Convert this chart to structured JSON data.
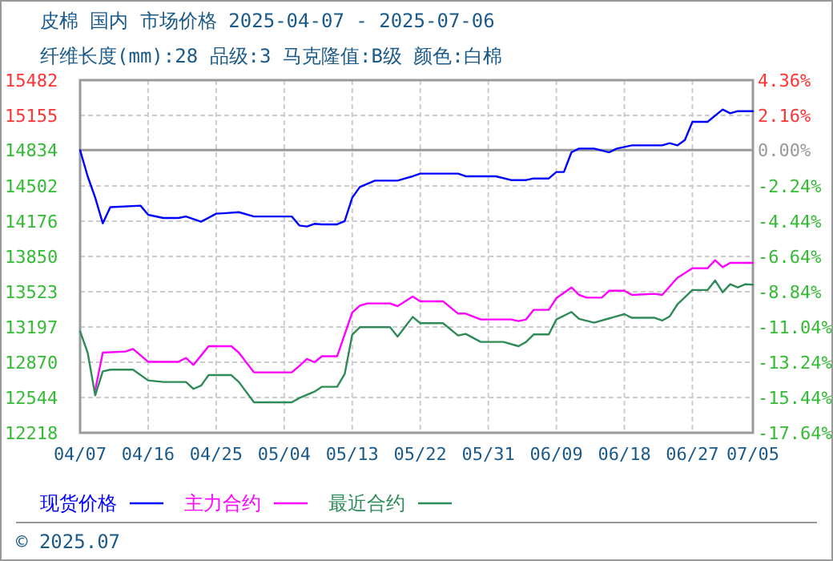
{
  "chart_data": {
    "type": "line",
    "title": "皮棉 国内 市场价格 2025-04-07 - 2025-07-06",
    "subtitle": "纤维长度(mm):28 品级:3 马克隆值:B级 颜色:白棉",
    "xlim": [
      "--04-07",
      "--07-05"
    ],
    "xticks": [
      {
        "value": "--04-07",
        "label": "04/07"
      },
      {
        "value": "--04-16",
        "label": "04/16"
      },
      {
        "value": "--04-25",
        "label": "04/25"
      },
      {
        "value": "--05-04",
        "label": "05/04"
      },
      {
        "value": "--05-13",
        "label": "05/13"
      },
      {
        "value": "--05-22",
        "label": "05/22"
      },
      {
        "value": "--05-31",
        "label": "05/31"
      },
      {
        "value": "--06-09",
        "label": "06/09"
      },
      {
        "value": "--06-18",
        "label": "06/18"
      },
      {
        "value": "--06-27",
        "label": "06/27"
      },
      {
        "value": "--07-05",
        "label": "07/05"
      }
    ],
    "ylim": [
      12218,
      15482
    ],
    "yticks": [
      12218,
      12544,
      12870,
      13197,
      13523,
      13850,
      14176,
      14502,
      14834,
      15155,
      15482
    ],
    "y2lim": [
      -17.64,
      4.36
    ],
    "y2ticks": [
      {
        "value": -17.64,
        "label": "-17.64%"
      },
      {
        "value": -15.44,
        "label": "-15.44%"
      },
      {
        "value": -13.24,
        "label": "-13.24%"
      },
      {
        "value": -11.04,
        "label": "-11.04%"
      },
      {
        "value": -8.84,
        "label": "-8.84%"
      },
      {
        "value": -6.64,
        "label": "-6.64%"
      },
      {
        "value": -4.44,
        "label": "-4.44%"
      },
      {
        "value": -2.24,
        "label": "-2.24%"
      },
      {
        "value": 0,
        "label": "0.00%"
      },
      {
        "value": 2.16,
        "label": "2.16%"
      },
      {
        "value": 4.36,
        "label": "4.36%"
      }
    ],
    "ref_lines": [
      {
        "axis": "y2",
        "value": 0,
        "color": "#999999"
      }
    ],
    "grid": true,
    "legend": "bottom",
    "line_style": "solid",
    "marker": "none",
    "annotations": [
      "© 2025.07"
    ],
    "series": [
      {
        "name": "现货价格",
        "color": "#0000ff",
        "x": [
          "--04-07",
          "--04-08",
          "--04-09",
          "--04-10",
          "--04-11",
          "--04-15",
          "--04-16",
          "--04-18",
          "--04-20",
          "--04-21",
          "--04-23",
          "--04-25",
          "--04-26",
          "--04-28",
          "--04-30",
          "--05-05",
          "--05-06",
          "--05-07",
          "--05-08",
          "--05-09",
          "--05-11",
          "--05-12",
          "--05-13",
          "--05-14",
          "--05-16",
          "--05-19",
          "--05-20",
          "--05-21",
          "--05-22",
          "--05-27",
          "--05-28",
          "--06-01",
          "--06-03",
          "--06-05",
          "--06-06",
          "--06-08",
          "--06-09",
          "--06-10",
          "--06-11",
          "--06-12",
          "--06-14",
          "--06-16",
          "--06-17",
          "--06-19",
          "--06-23",
          "--06-24",
          "--06-25",
          "--06-26",
          "--06-27",
          "--06-29",
          "--07-01",
          "--07-02",
          "--07-03",
          "--07-05"
        ],
        "values": [
          14834,
          14592,
          14394,
          14157,
          14306,
          14320,
          14236,
          14206,
          14206,
          14220,
          14172,
          14246,
          14250,
          14260,
          14220,
          14220,
          14137,
          14127,
          14152,
          14147,
          14147,
          14177,
          14394,
          14493,
          14552,
          14552,
          14572,
          14592,
          14617,
          14617,
          14592,
          14592,
          14557,
          14557,
          14572,
          14572,
          14632,
          14632,
          14814,
          14849,
          14849,
          14814,
          14849,
          14878,
          14878,
          14898,
          14878,
          14928,
          15096,
          15096,
          15210,
          15175,
          15195,
          15195
        ]
      },
      {
        "name": "主力合约",
        "color": "#ff00ff",
        "x": [
          "--04-09",
          "--04-10",
          "--04-13",
          "--04-14",
          "--04-16",
          "--04-20",
          "--04-21",
          "--04-22",
          "--04-24",
          "--04-27",
          "--04-28",
          "--04-30",
          "--05-05",
          "--05-06",
          "--05-07",
          "--05-08",
          "--05-09",
          "--05-11",
          "--05-13",
          "--05-14",
          "--05-15",
          "--05-18",
          "--05-19",
          "--05-21",
          "--05-22",
          "--05-25",
          "--05-27",
          "--05-28",
          "--05-30",
          "--06-03",
          "--06-04",
          "--06-05",
          "--06-06",
          "--06-08",
          "--06-09",
          "--06-11",
          "--06-12",
          "--06-13",
          "--06-15",
          "--06-16",
          "--06-18",
          "--06-19",
          "--06-22",
          "--06-23",
          "--06-25",
          "--06-27",
          "--06-29",
          "--06-30",
          "--07-01",
          "--07-02",
          "--07-05"
        ],
        "values": [
          12614,
          12960,
          12970,
          12994,
          12875,
          12875,
          12910,
          12846,
          13019,
          13019,
          12960,
          12777,
          12777,
          12836,
          12901,
          12871,
          12926,
          12926,
          13331,
          13395,
          13415,
          13415,
          13390,
          13479,
          13435,
          13435,
          13321,
          13321,
          13267,
          13267,
          13252,
          13267,
          13356,
          13356,
          13464,
          13563,
          13494,
          13469,
          13469,
          13533,
          13533,
          13494,
          13504,
          13494,
          13652,
          13741,
          13741,
          13816,
          13751,
          13791,
          13791
        ]
      },
      {
        "name": "最近合约",
        "color": "#2e8b57",
        "x": [
          "--04-07",
          "--04-08",
          "--04-09",
          "--04-10",
          "--04-11",
          "--04-14",
          "--04-16",
          "--04-18",
          "--04-21",
          "--04-22",
          "--04-23",
          "--04-24",
          "--04-27",
          "--04-28",
          "--04-30",
          "--05-05",
          "--05-06",
          "--05-08",
          "--05-09",
          "--05-11",
          "--05-12",
          "--05-13",
          "--05-14",
          "--05-18",
          "--05-19",
          "--05-21",
          "--05-22",
          "--05-25",
          "--05-27",
          "--05-28",
          "--05-30",
          "--06-02",
          "--06-04",
          "--06-05",
          "--06-06",
          "--06-08",
          "--06-09",
          "--06-11",
          "--06-12",
          "--06-14",
          "--06-16",
          "--06-18",
          "--06-19",
          "--06-22",
          "--06-23",
          "--06-24",
          "--06-25",
          "--06-27",
          "--06-29",
          "--06-30",
          "--07-01",
          "--07-02",
          "--07-03",
          "--07-04",
          "--07-05"
        ],
        "values": [
          13157,
          12960,
          12564,
          12787,
          12802,
          12802,
          12703,
          12688,
          12688,
          12624,
          12654,
          12752,
          12752,
          12688,
          12500,
          12500,
          12540,
          12599,
          12644,
          12644,
          12762,
          13126,
          13195,
          13195,
          13108,
          13291,
          13232,
          13232,
          13118,
          13133,
          13059,
          13059,
          13019,
          13059,
          13128,
          13128,
          13267,
          13336,
          13272,
          13237,
          13277,
          13316,
          13282,
          13282,
          13257,
          13296,
          13405,
          13539,
          13539,
          13628,
          13519,
          13593,
          13563,
          13593,
          13588
        ]
      }
    ]
  }
}
